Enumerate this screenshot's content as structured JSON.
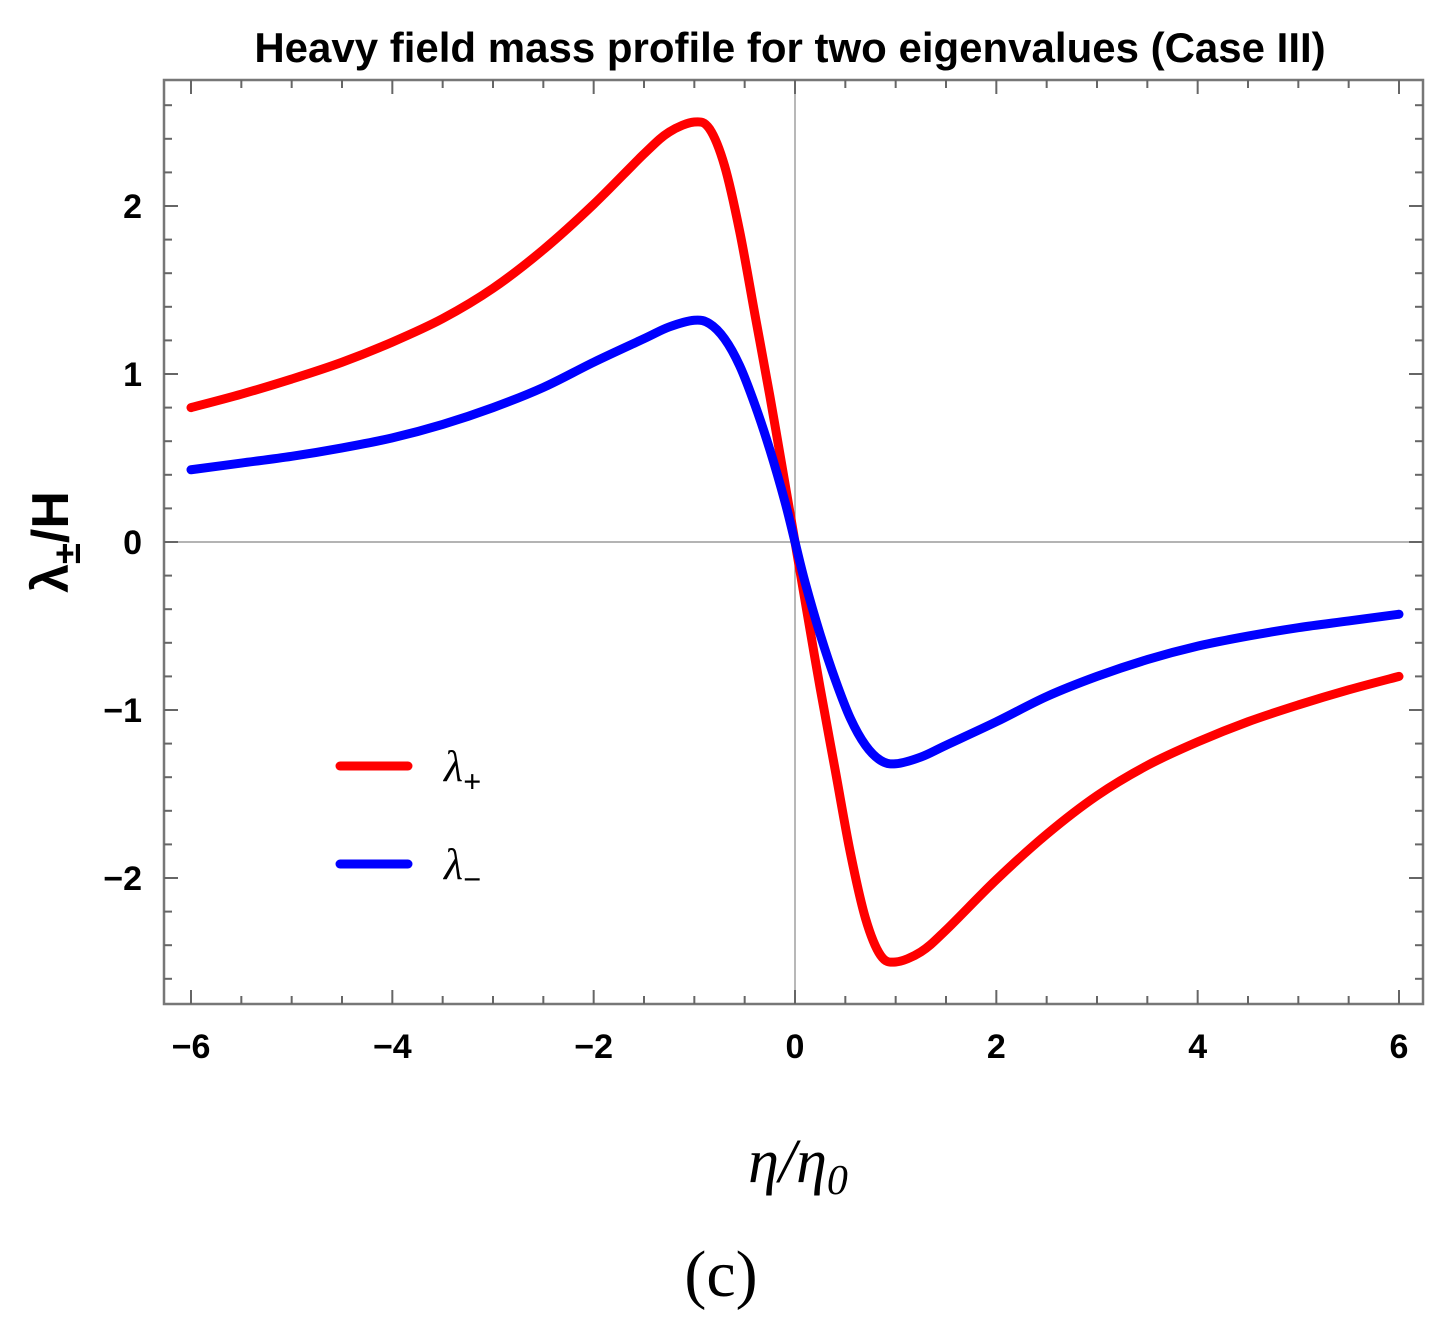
{
  "chart_data": {
    "type": "line",
    "title": "Heavy field mass profile for two eigenvalues (Case III)",
    "xlabel": "η/η0",
    "xlabel_parts": {
      "main": "η/η",
      "sub": "0"
    },
    "ylabel": "λ±/H",
    "ylabel_parts": {
      "main": "λ",
      "sub": "±",
      "rest": "/H"
    },
    "xlim": [
      -6,
      6
    ],
    "ylim": [
      -2.75,
      2.75
    ],
    "x_ticks": [
      -6,
      -4,
      -2,
      0,
      2,
      4,
      6
    ],
    "x_tick_labels": [
      "−6",
      "−4",
      "−2",
      "0",
      "2",
      "4",
      "6"
    ],
    "y_ticks": [
      -2,
      -1,
      0,
      1,
      2
    ],
    "y_tick_labels": [
      "−2",
      "−1",
      "0",
      "1",
      "2"
    ],
    "legend_position": "lower-left",
    "caption": "(c)",
    "x": [
      -6,
      -5.5,
      -5,
      -4.5,
      -4,
      -3.5,
      -3,
      -2.5,
      -2,
      -1.5,
      -1.25,
      -1,
      -0.85,
      -0.7,
      -0.55,
      -0.4,
      -0.25,
      -0.1,
      0,
      0.1,
      0.25,
      0.4,
      0.55,
      0.7,
      0.85,
      1,
      1.25,
      1.5,
      2,
      2.5,
      3,
      3.5,
      4,
      4.5,
      5,
      5.5,
      6
    ],
    "series": [
      {
        "name": "λ+",
        "name_parts": {
          "main": "λ",
          "sub": "+"
        },
        "color": "#ff0000",
        "values": [
          0.8,
          0.88,
          0.97,
          1.07,
          1.19,
          1.33,
          1.51,
          1.74,
          2.01,
          2.31,
          2.44,
          2.5,
          2.46,
          2.24,
          1.85,
          1.36,
          0.87,
          0.35,
          0,
          -0.35,
          -0.87,
          -1.36,
          -1.85,
          -2.24,
          -2.46,
          -2.5,
          -2.44,
          -2.31,
          -2.01,
          -1.74,
          -1.51,
          -1.33,
          -1.19,
          -1.07,
          -0.97,
          -0.88,
          -0.8
        ]
      },
      {
        "name": "λ−",
        "name_parts": {
          "main": "λ",
          "sub": "−"
        },
        "color": "#0000ff",
        "values": [
          0.43,
          0.47,
          0.51,
          0.56,
          0.62,
          0.7,
          0.8,
          0.92,
          1.07,
          1.21,
          1.28,
          1.32,
          1.3,
          1.21,
          1.05,
          0.82,
          0.55,
          0.24,
          0,
          -0.24,
          -0.55,
          -0.82,
          -1.05,
          -1.21,
          -1.3,
          -1.32,
          -1.28,
          -1.21,
          -1.07,
          -0.92,
          -0.8,
          -0.7,
          -0.62,
          -0.56,
          -0.51,
          -0.47,
          -0.43
        ]
      }
    ]
  }
}
